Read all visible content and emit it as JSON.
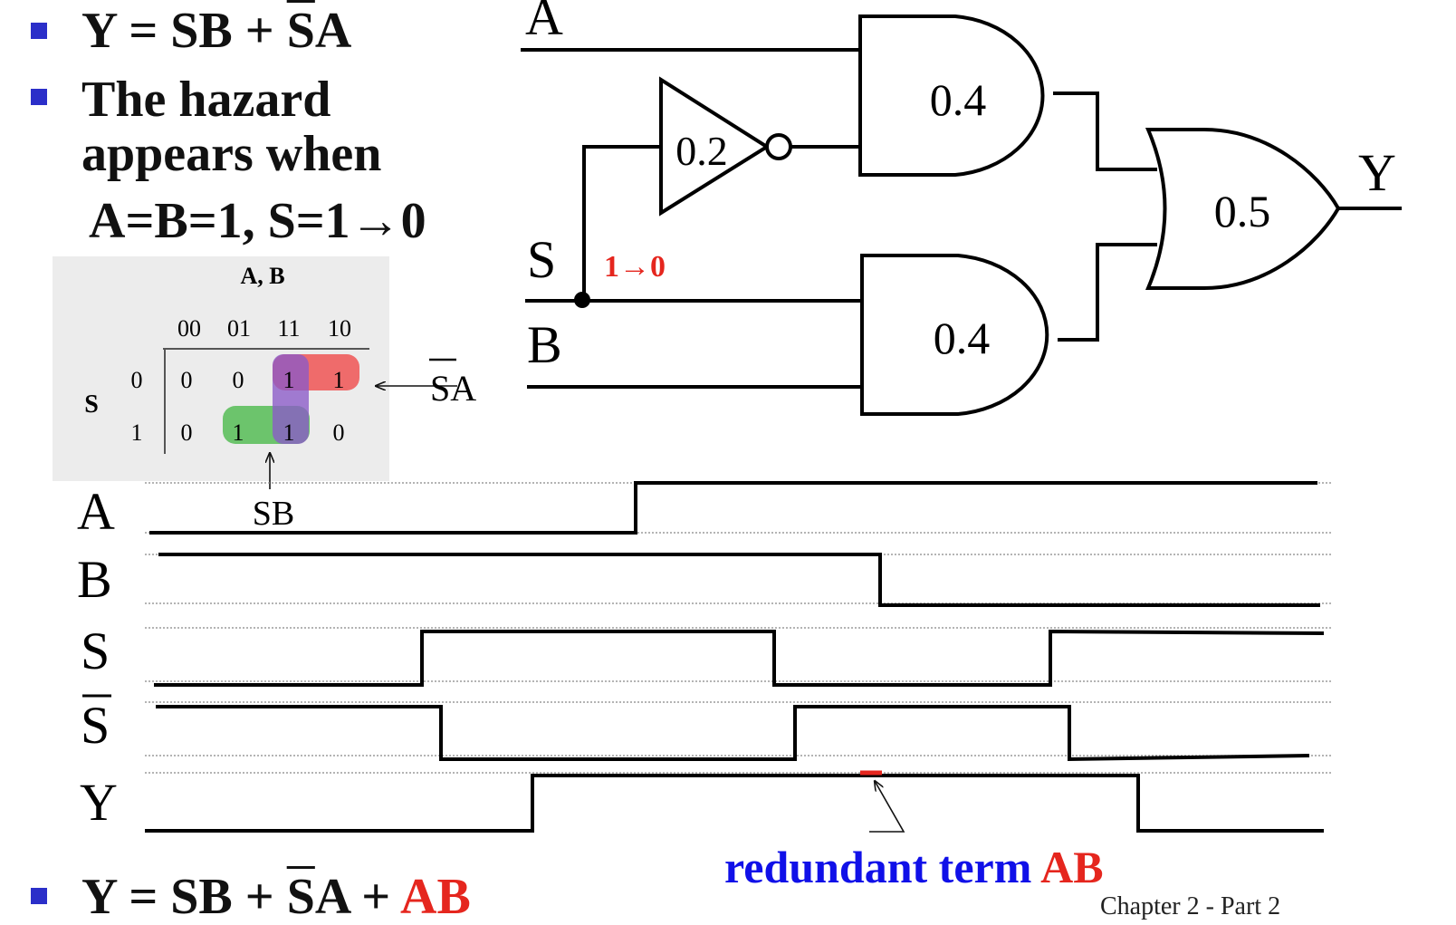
{
  "bullets": {
    "eq1": {
      "prefix": "Y = SB + ",
      "bar": "S",
      "suffix": "A"
    },
    "hazard_line1": "The hazard",
    "hazard_line2": "appears when",
    "hazard_condition": "A=B=1, S=1→0",
    "eq2": {
      "prefix": "Y = SB + ",
      "bar": "S",
      "suffix": "A + ",
      "added_term": "AB"
    }
  },
  "kmap": {
    "title": "A, B",
    "row_var": "S",
    "columns": [
      "00",
      "01",
      "11",
      "10"
    ],
    "rows": [
      {
        "label": "0",
        "cells": [
          "0",
          "0",
          "1",
          "1"
        ]
      },
      {
        "label": "1",
        "cells": [
          "0",
          "1",
          "1",
          "0"
        ]
      }
    ],
    "annotation_sa": {
      "bar": "S",
      "suffix": "A"
    },
    "annotation_sb": "SB",
    "group_colors": {
      "sa": "#ef6b6b",
      "sb": "#6cc46c",
      "ab": "#8a5ac8"
    }
  },
  "circuit": {
    "inputs": {
      "a": "A",
      "s": "S",
      "b": "B"
    },
    "output": "Y",
    "delays": {
      "not": "0.2",
      "and_top": "0.4",
      "and_bottom": "0.4",
      "or": "0.5"
    },
    "transition_label": "1→0"
  },
  "timing": {
    "labels": {
      "a": "A",
      "b": "B",
      "s": "S",
      "s_bar": "S",
      "y": "Y"
    },
    "annotation": {
      "text": "redundant term ",
      "term": "AB"
    }
  },
  "footer": "Chapter 2 - Part 2"
}
